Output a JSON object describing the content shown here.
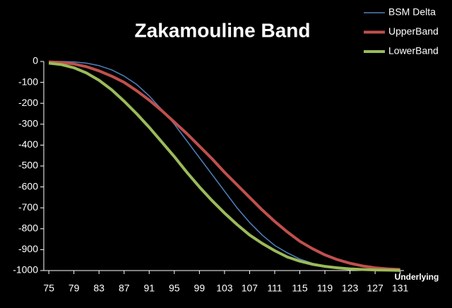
{
  "chart_data": {
    "type": "line",
    "title": "Zakamouline Band",
    "x_label": "Underlying",
    "x": [
      75,
      77,
      79,
      81,
      83,
      85,
      87,
      89,
      91,
      93,
      95,
      97,
      99,
      101,
      103,
      105,
      107,
      109,
      111,
      113,
      115,
      117,
      119,
      121,
      123,
      125,
      127,
      129,
      131
    ],
    "series": [
      {
        "name": "BSM Delta",
        "color": "#4f81bd",
        "width": 1.5,
        "values": [
          0,
          0,
          -2,
          -8,
          -20,
          -40,
          -70,
          -110,
          -165,
          -230,
          -300,
          -380,
          -460,
          -540,
          -620,
          -700,
          -770,
          -830,
          -880,
          -915,
          -945,
          -965,
          -978,
          -987,
          -993,
          -996,
          -998,
          -999,
          -1000
        ]
      },
      {
        "name": "UpperBand",
        "color": "#c0504d",
        "width": 4,
        "values": [
          -2,
          -5,
          -12,
          -25,
          -45,
          -70,
          -100,
          -140,
          -185,
          -235,
          -290,
          -345,
          -405,
          -465,
          -530,
          -590,
          -650,
          -710,
          -765,
          -815,
          -860,
          -895,
          -925,
          -948,
          -965,
          -978,
          -987,
          -992,
          -995
        ]
      },
      {
        "name": "LowerBand",
        "color": "#9bbb59",
        "width": 4,
        "values": [
          -8,
          -15,
          -30,
          -55,
          -90,
          -135,
          -190,
          -250,
          -315,
          -385,
          -455,
          -530,
          -600,
          -665,
          -725,
          -780,
          -830,
          -870,
          -905,
          -935,
          -955,
          -970,
          -980,
          -987,
          -992,
          -995,
          -997,
          -998,
          -999
        ]
      }
    ],
    "xlim": [
      74.2,
      131.6
    ],
    "xticks": [
      75,
      79,
      83,
      87,
      91,
      95,
      99,
      103,
      107,
      111,
      115,
      119,
      123,
      127,
      131
    ],
    "ylim": [
      -1000,
      0
    ],
    "yticks": [
      0,
      -100,
      -200,
      -300,
      -400,
      -500,
      -600,
      -700,
      -800,
      -900,
      -1000
    ],
    "legend": "top-right"
  }
}
